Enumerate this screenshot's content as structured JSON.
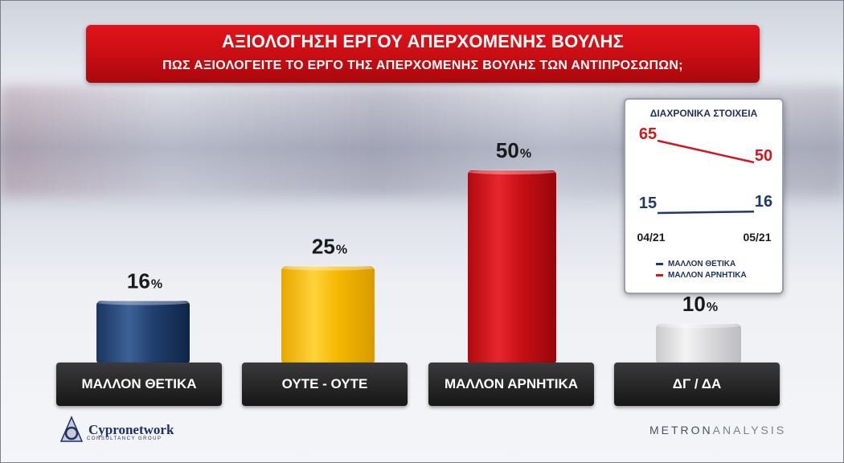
{
  "header": {
    "title": "ΑΞΙΟΛΟΓΗΣΗ ΕΡΓΟΥ ΑΠΕΡΧΟΜΕΝΗΣ ΒΟΥΛΗΣ",
    "subtitle": "ΠΩΣ ΑΞΙΟΛΟΓΕΙΤΕ ΤΟ ΕΡΓΟ ΤΗΣ ΑΠΕΡΧΟΜΕΝΗΣ ΒΟΥΛΗΣ ΤΩΝ ΑΝΤΙΠΡΟΣΩΠΩΝ;"
  },
  "chart_data": [
    {
      "type": "bar",
      "title": "ΑΞΙΟΛΟΓΗΣΗ ΕΡΓΟΥ ΑΠΕΡΧΟΜΕΝΗΣ ΒΟΥΛΗΣ",
      "subtitle": "ΠΩΣ ΑΞΙΟΛΟΓΕΙΤΕ ΤΟ ΕΡΓΟ ΤΗΣ ΑΠΕΡΧΟΜΕΝΗΣ ΒΟΥΛΗΣ ΤΩΝ ΑΝΤΙΠΡΟΣΩΠΩΝ;",
      "categories": [
        "ΜΑΛΛΟΝ ΘΕΤΙΚΑ",
        "ΟΥΤΕ - ΟΥΤΕ",
        "ΜΑΛΛΟΝ ΑΡΝΗΤΙΚΑ",
        "ΔΓ / ΔΑ"
      ],
      "values": [
        16,
        25,
        50,
        10
      ],
      "value_suffix": "%",
      "colors": [
        "#1d3a66",
        "#f2b705",
        "#c80f16",
        "#d6d6d6"
      ],
      "ylim": [
        0,
        50
      ]
    },
    {
      "type": "line",
      "title": "ΔΙΑΧΡΟΝΙΚΑ ΣΤΟΙΧΕΙΑ",
      "x": [
        "04/21",
        "05/21"
      ],
      "series": [
        {
          "name": "ΜΑΛΛΟΝ ΘΕΤΙΚΑ",
          "values": [
            15,
            16
          ],
          "color": "#1f3a68"
        },
        {
          "name": "ΜΑΛΛΟΝ ΑΡΝΗΤΙΚΑ",
          "values": [
            65,
            50
          ],
          "color": "#d01820"
        }
      ],
      "ylim": [
        0,
        70
      ],
      "legend": "bottom"
    }
  ],
  "logos": {
    "left": "Cypronetwork",
    "left_sub": "CONSULTANCY GROUP",
    "right_a": "METRON",
    "right_b": "ANALYSIS"
  }
}
